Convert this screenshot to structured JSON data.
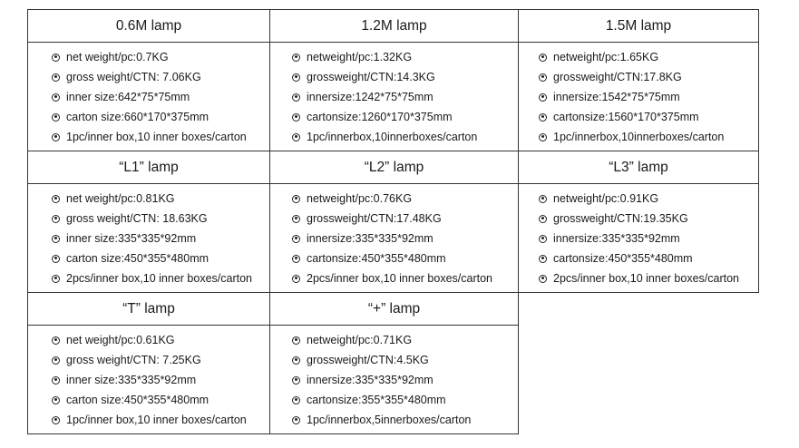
{
  "products": [
    {
      "title": "0.6M lamp",
      "specs": [
        "net weight/pc:0.7KG",
        "gross weight/CTN: 7.06KG",
        "inner size:642*75*75mm",
        "carton size:660*170*375mm",
        "1pc/inner box,10 inner boxes/carton"
      ]
    },
    {
      "title": "1.2M lamp",
      "specs": [
        "netweight/pc:1.32KG",
        "grossweight/CTN:14.3KG",
        "innersize:1242*75*75mm",
        "cartonsize:1260*170*375mm",
        "1pc/innerbox,10innerboxes/carton"
      ]
    },
    {
      "title": "1.5M lamp",
      "specs": [
        "netweight/pc:1.65KG",
        "grossweight/CTN:17.8KG",
        "innersize:1542*75*75mm",
        "cartonsize:1560*170*375mm",
        "1pc/innerbox,10innerboxes/carton"
      ]
    },
    {
      "title": "“L1” lamp",
      "specs": [
        "net weight/pc:0.81KG",
        "gross weight/CTN: 18.63KG",
        "inner size:335*335*92mm",
        "carton size:450*355*480mm",
        "2pcs/inner box,10 inner boxes/carton"
      ]
    },
    {
      "title": "“L2” lamp",
      "specs": [
        "netweight/pc:0.76KG",
        "grossweight/CTN:17.48KG",
        "innersize:335*335*92mm",
        "cartonsize:450*355*480mm",
        "2pcs/inner box,10 inner boxes/carton"
      ]
    },
    {
      "title": "“L3” lamp",
      "specs": [
        "netweight/pc:0.91KG",
        "grossweight/CTN:19.35KG",
        "innersize:335*335*92mm",
        "cartonsize:450*355*480mm",
        "2pcs/inner box,10 inner boxes/carton"
      ]
    },
    {
      "title": "“T” lamp",
      "specs": [
        "net weight/pc:0.61KG",
        "gross weight/CTN: 7.25KG",
        "inner size:335*335*92mm",
        "carton size:450*355*480mm",
        "1pc/inner box,10 inner boxes/carton"
      ]
    },
    {
      "title": "“+” lamp",
      "specs": [
        "netweight/pc:0.71KG",
        "grossweight/CTN:4.5KG",
        "innersize:335*335*92mm",
        "cartonsize:355*355*480mm",
        "1pc/innerbox,5innerboxes/carton"
      ]
    }
  ]
}
